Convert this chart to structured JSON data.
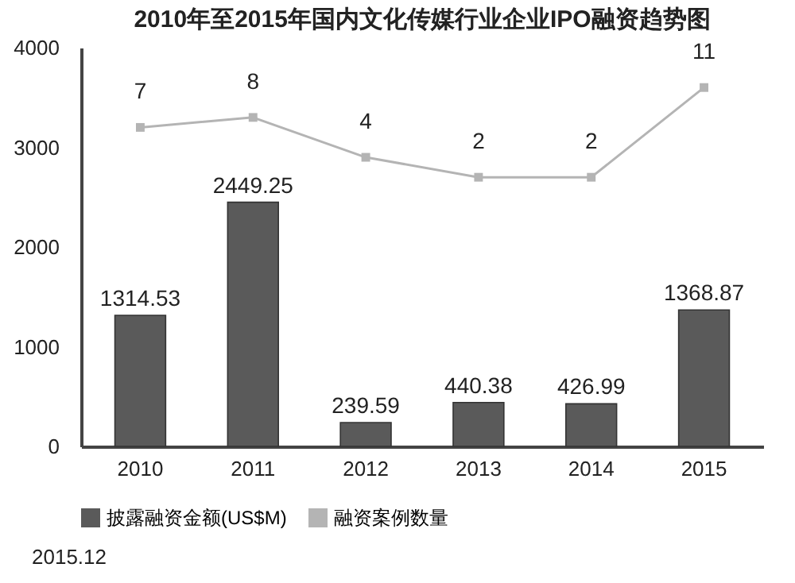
{
  "chart_data": {
    "type": "bar",
    "title": "2010年至2015年国内文化传媒行业企业IPO融资趋势图",
    "categories": [
      "2010",
      "2011",
      "2012",
      "2013",
      "2014",
      "2015"
    ],
    "series": [
      {
        "name": "披露融资金额(US$M)",
        "color": "#5a5a5a",
        "values": [
          1314.53,
          2449.25,
          239.59,
          440.38,
          426.99,
          1368.87
        ]
      },
      {
        "name": "融资案例数量",
        "type": "line",
        "axis": "y2",
        "color": "#b4b4b4",
        "values": [
          7,
          8,
          4,
          2,
          2,
          11
        ]
      }
    ],
    "ylim": [
      0,
      4000
    ],
    "yticks": [
      0,
      1000,
      2000,
      3000,
      4000
    ],
    "y2lim": [
      -25,
      15
    ],
    "tick_labels": "y",
    "data_labels": true,
    "grid": false,
    "legend": "bottom",
    "marker": "square",
    "line_style": "solid",
    "annotations": [
      "2015.12"
    ]
  }
}
